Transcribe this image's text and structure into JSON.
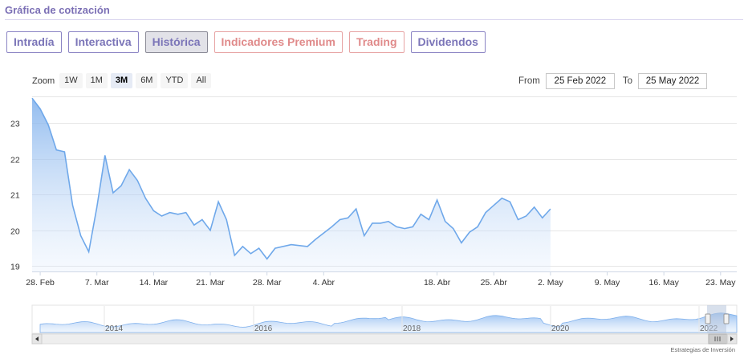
{
  "header": {
    "title": "Gráfica de cotización"
  },
  "tabs": [
    {
      "label": "Intradía",
      "state": "normal"
    },
    {
      "label": "Interactiva",
      "state": "normal"
    },
    {
      "label": "Histórica",
      "state": "active"
    },
    {
      "label": "Indicadores Premium",
      "state": "premium"
    },
    {
      "label": "Trading",
      "state": "premium"
    },
    {
      "label": "Dividendos",
      "state": "normal"
    }
  ],
  "zoom": {
    "label": "Zoom",
    "buttons": [
      "1W",
      "1M",
      "3M",
      "6M",
      "YTD",
      "All"
    ],
    "selected": "3M"
  },
  "range": {
    "from_label": "From",
    "from_value": "25 Feb 2022",
    "to_label": "To",
    "to_value": "25 May 2022"
  },
  "credits": "Estrategias de Inversión",
  "colors": {
    "accent": "#7b6fb5",
    "line": "#6fa8ea",
    "premium": "#e08a8a"
  },
  "chart_data": {
    "type": "area",
    "yticks": [
      19,
      20,
      21,
      22,
      23
    ],
    "ylim": [
      18.85,
      23.75
    ],
    "xrange": [
      "2022-02-27",
      "2022-05-25"
    ],
    "xticks": [
      {
        "label": "28. Feb",
        "date": "2022-02-28"
      },
      {
        "label": "7. Mar",
        "date": "2022-03-07"
      },
      {
        "label": "14. Mar",
        "date": "2022-03-14"
      },
      {
        "label": "21. Mar",
        "date": "2022-03-21"
      },
      {
        "label": "28. Mar",
        "date": "2022-03-28"
      },
      {
        "label": "4. Abr",
        "date": "2022-04-04"
      },
      {
        "label": "18. Abr",
        "date": "2022-04-18"
      },
      {
        "label": "25. Abr",
        "date": "2022-04-25"
      },
      {
        "label": "2. May",
        "date": "2022-05-02"
      },
      {
        "label": "9. May",
        "date": "2022-05-09"
      },
      {
        "label": "16. May",
        "date": "2022-05-16"
      },
      {
        "label": "23. May",
        "date": "2022-05-23"
      }
    ],
    "series": [
      {
        "points": [
          [
            "2022-02-27",
            23.7
          ],
          [
            "2022-02-28",
            23.4
          ],
          [
            "2022-03-01",
            22.95
          ],
          [
            "2022-03-02",
            22.25
          ],
          [
            "2022-03-03",
            22.2
          ],
          [
            "2022-03-04",
            20.7
          ],
          [
            "2022-03-05",
            19.85
          ],
          [
            "2022-03-06",
            19.4
          ],
          [
            "2022-03-07",
            20.65
          ],
          [
            "2022-03-08",
            22.1
          ],
          [
            "2022-03-09",
            21.05
          ],
          [
            "2022-03-10",
            21.25
          ],
          [
            "2022-03-11",
            21.7
          ],
          [
            "2022-03-12",
            21.4
          ],
          [
            "2022-03-13",
            20.9
          ],
          [
            "2022-03-14",
            20.55
          ],
          [
            "2022-03-15",
            20.4
          ],
          [
            "2022-03-16",
            20.5
          ],
          [
            "2022-03-17",
            20.45
          ],
          [
            "2022-03-18",
            20.5
          ],
          [
            "2022-03-19",
            20.15
          ],
          [
            "2022-03-20",
            20.3
          ],
          [
            "2022-03-21",
            20.0
          ],
          [
            "2022-03-22",
            20.8
          ],
          [
            "2022-03-23",
            20.3
          ],
          [
            "2022-03-24",
            19.3
          ],
          [
            "2022-03-25",
            19.55
          ],
          [
            "2022-03-26",
            19.35
          ],
          [
            "2022-03-27",
            19.5
          ],
          [
            "2022-03-28",
            19.2
          ],
          [
            "2022-03-29",
            19.5
          ],
          [
            "2022-03-31",
            19.6
          ],
          [
            "2022-04-02",
            19.55
          ],
          [
            "2022-04-03",
            19.75
          ],
          [
            "2022-04-05",
            20.1
          ],
          [
            "2022-04-06",
            20.3
          ],
          [
            "2022-04-07",
            20.35
          ],
          [
            "2022-04-08",
            20.6
          ],
          [
            "2022-04-09",
            19.85
          ],
          [
            "2022-04-10",
            20.2
          ],
          [
            "2022-04-11",
            20.2
          ],
          [
            "2022-04-12",
            20.25
          ],
          [
            "2022-04-13",
            20.1
          ],
          [
            "2022-04-14",
            20.05
          ],
          [
            "2022-04-15",
            20.1
          ],
          [
            "2022-04-16",
            20.45
          ],
          [
            "2022-04-17",
            20.3
          ],
          [
            "2022-04-18",
            20.85
          ],
          [
            "2022-04-19",
            20.25
          ],
          [
            "2022-04-20",
            20.05
          ],
          [
            "2022-04-21",
            19.65
          ],
          [
            "2022-04-22",
            19.95
          ],
          [
            "2022-04-23",
            20.1
          ],
          [
            "2022-04-24",
            20.5
          ],
          [
            "2022-04-25",
            20.7
          ],
          [
            "2022-04-26",
            20.9
          ],
          [
            "2022-04-27",
            20.8
          ],
          [
            "2022-04-28",
            20.3
          ],
          [
            "2022-04-29",
            20.4
          ],
          [
            "2022-04-30",
            20.65
          ],
          [
            "2022-05-01",
            20.35
          ],
          [
            "2022-05-02",
            20.6
          ]
        ]
      }
    ],
    "navigator": {
      "xticks": [
        "2014",
        "2016",
        "2018",
        "2020",
        "2022"
      ]
    }
  }
}
